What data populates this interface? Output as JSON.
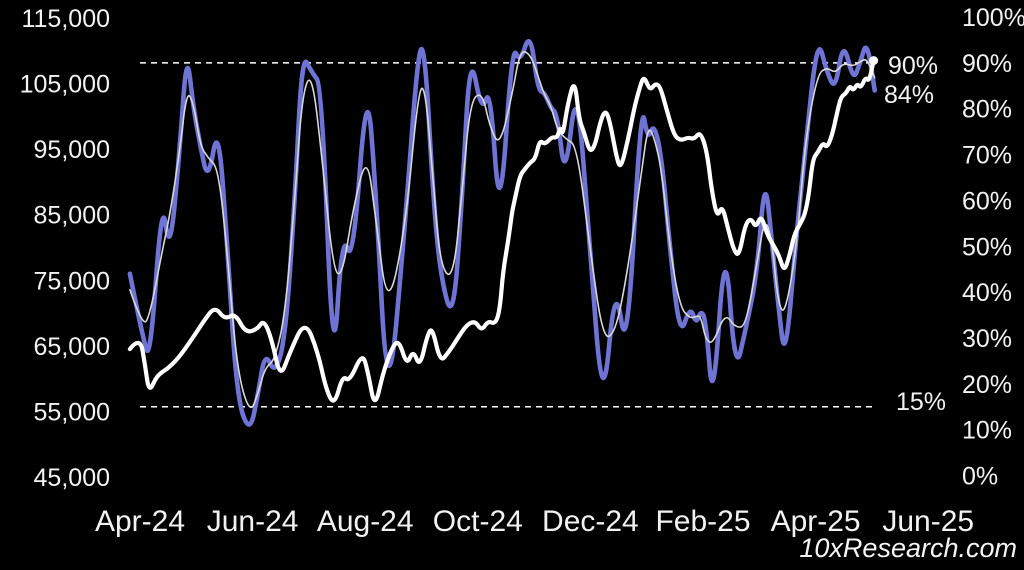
{
  "watermark": "10xResearch.com",
  "annotations": {
    "upper_threshold_label": "90%",
    "latest_value_label": "84%",
    "lower_threshold_label": "15%"
  },
  "colors": {
    "background": "#000000",
    "price_line": "#ffffff",
    "indicator_line": "#6f74d4",
    "signal_line": "#d8d8d8",
    "threshold_line": "#ffffff",
    "axis_text": "#f2f2f2"
  },
  "chart_data": {
    "type": "line",
    "grid": false,
    "legend": false,
    "x_axis": {
      "unit": "months_from_Apr-24",
      "ticks": [
        {
          "t": 0,
          "label": "Apr-24"
        },
        {
          "t": 2,
          "label": "Jun-24"
        },
        {
          "t": 4,
          "label": "Aug-24"
        },
        {
          "t": 6,
          "label": "Oct-24"
        },
        {
          "t": 8,
          "label": "Dec-24"
        },
        {
          "t": 10,
          "label": "Feb-25"
        },
        {
          "t": 12,
          "label": "Apr-25"
        },
        {
          "t": 14,
          "label": "Jun-25"
        }
      ]
    },
    "left_axis": {
      "min": 45000,
      "max": 115000,
      "ticks": [
        {
          "value": 115000,
          "label": "115,000"
        },
        {
          "value": 105000,
          "label": "105,000"
        },
        {
          "value": 95000,
          "label": "95,000"
        },
        {
          "value": 85000,
          "label": "85,000"
        },
        {
          "value": 75000,
          "label": "75,000"
        },
        {
          "value": 65000,
          "label": "65,000"
        },
        {
          "value": 55000,
          "label": "55,000"
        },
        {
          "value": 45000,
          "label": "45,000"
        }
      ]
    },
    "right_axis": {
      "min": 0,
      "max": 100,
      "ticks": [
        {
          "value": 100,
          "label": "100%"
        },
        {
          "value": 90,
          "label": "90%"
        },
        {
          "value": 80,
          "label": "80%"
        },
        {
          "value": 70,
          "label": "70%"
        },
        {
          "value": 60,
          "label": "60%"
        },
        {
          "value": 50,
          "label": "50%"
        },
        {
          "value": 40,
          "label": "40%"
        },
        {
          "value": 30,
          "label": "30%"
        },
        {
          "value": 20,
          "label": "20%"
        },
        {
          "value": 10,
          "label": "10%"
        },
        {
          "value": 0,
          "label": "0%"
        }
      ]
    },
    "thresholds": [
      {
        "axis": "right",
        "value": 90,
        "label": "90%"
      },
      {
        "axis": "right",
        "value": 15,
        "label": "15%"
      }
    ],
    "latest_indicator_value": "84%",
    "series": [
      {
        "name": "indicator",
        "axis": "right",
        "color": "#6f74d4",
        "width": 4.6,
        "points": [
          [
            -0.18,
            44
          ],
          [
            0.05,
            30
          ],
          [
            0.18,
            25
          ],
          [
            0.39,
            61
          ],
          [
            0.53,
            48
          ],
          [
            0.7,
            70
          ],
          [
            0.83,
            93
          ],
          [
            0.95,
            80
          ],
          [
            1.07,
            72
          ],
          [
            1.21,
            64
          ],
          [
            1.39,
            77
          ],
          [
            1.55,
            50
          ],
          [
            1.72,
            17
          ],
          [
            1.95,
            9
          ],
          [
            2.1,
            18
          ],
          [
            2.22,
            27
          ],
          [
            2.4,
            22
          ],
          [
            2.58,
            30
          ],
          [
            2.75,
            60
          ],
          [
            2.88,
            92
          ],
          [
            3.05,
            88
          ],
          [
            3.23,
            85
          ],
          [
            3.43,
            21
          ],
          [
            3.59,
            53
          ],
          [
            3.78,
            46
          ],
          [
            4.03,
            87
          ],
          [
            4.19,
            62
          ],
          [
            4.4,
            12.5
          ],
          [
            4.71,
            55
          ],
          [
            4.94,
            93
          ],
          [
            5.06,
            93
          ],
          [
            5.2,
            62
          ],
          [
            5.33,
            44
          ],
          [
            5.56,
            33
          ],
          [
            5.72,
            60
          ],
          [
            5.86,
            93
          ],
          [
            6.07,
            79
          ],
          [
            6.22,
            85
          ],
          [
            6.39,
            54
          ],
          [
            6.61,
            94
          ],
          [
            6.75,
            90
          ],
          [
            6.93,
            97
          ],
          [
            7.07,
            84
          ],
          [
            7.19,
            83.5
          ],
          [
            7.3,
            80
          ],
          [
            7.41,
            79
          ],
          [
            7.55,
            64
          ],
          [
            7.76,
            87
          ],
          [
            7.99,
            50
          ],
          [
            8.22,
            13
          ],
          [
            8.44,
            43
          ],
          [
            8.65,
            25
          ],
          [
            8.9,
            82
          ],
          [
            9.02,
            73
          ],
          [
            9.13,
            77
          ],
          [
            9.27,
            69
          ],
          [
            9.41,
            50
          ],
          [
            9.59,
            30
          ],
          [
            9.77,
            37
          ],
          [
            9.88,
            33
          ],
          [
            9.96,
            36
          ],
          [
            10.05,
            34
          ],
          [
            10.18,
            14
          ],
          [
            10.39,
            53
          ],
          [
            10.57,
            22
          ],
          [
            10.76,
            32
          ],
          [
            10.96,
            44
          ],
          [
            11.1,
            66
          ],
          [
            11.23,
            50
          ],
          [
            11.33,
            38
          ],
          [
            11.46,
            24
          ],
          [
            11.67,
            54
          ],
          [
            11.81,
            70
          ],
          [
            12.03,
            96
          ],
          [
            12.2,
            88
          ],
          [
            12.35,
            84
          ],
          [
            12.49,
            95
          ],
          [
            12.67,
            86
          ],
          [
            12.79,
            90
          ],
          [
            12.91,
            95
          ],
          [
            13.05,
            84
          ]
        ]
      },
      {
        "name": "indicator_signal",
        "axis": "right",
        "color": "#d8d8d8",
        "width": 1.6,
        "derived_from": "indicator",
        "smooth_window": 3
      },
      {
        "name": "btc_price",
        "axis": "left",
        "color": "#ffffff",
        "width": 4.2,
        "end_marker": true,
        "points": [
          [
            -0.18,
            64500
          ],
          [
            0.0,
            66500
          ],
          [
            0.09,
            62000
          ],
          [
            0.16,
            57800
          ],
          [
            0.3,
            60500
          ],
          [
            0.49,
            61500
          ],
          [
            0.67,
            63000
          ],
          [
            0.92,
            66000
          ],
          [
            1.15,
            69000
          ],
          [
            1.33,
            71000
          ],
          [
            1.51,
            69000
          ],
          [
            1.69,
            70000
          ],
          [
            1.87,
            67000
          ],
          [
            2.08,
            67500
          ],
          [
            2.2,
            69000
          ],
          [
            2.34,
            66000
          ],
          [
            2.49,
            60000
          ],
          [
            2.66,
            64000
          ],
          [
            2.93,
            69000
          ],
          [
            3.16,
            64000
          ],
          [
            3.3,
            58500
          ],
          [
            3.45,
            55800
          ],
          [
            3.6,
            60500
          ],
          [
            3.72,
            59500
          ],
          [
            3.95,
            64000
          ],
          [
            4.05,
            61000
          ],
          [
            4.17,
            55300
          ],
          [
            4.32,
            61000
          ],
          [
            4.49,
            65000
          ],
          [
            4.6,
            65800
          ],
          [
            4.74,
            62000
          ],
          [
            4.85,
            64400
          ],
          [
            4.97,
            61700
          ],
          [
            5.1,
            66500
          ],
          [
            5.19,
            67900
          ],
          [
            5.33,
            62500
          ],
          [
            5.48,
            64000
          ],
          [
            5.63,
            66000
          ],
          [
            5.8,
            68200
          ],
          [
            5.95,
            68800
          ],
          [
            6.07,
            67300
          ],
          [
            6.18,
            68800
          ],
          [
            6.31,
            68300
          ],
          [
            6.39,
            70500
          ],
          [
            6.45,
            76500
          ],
          [
            6.54,
            81000
          ],
          [
            6.61,
            85500
          ],
          [
            6.66,
            87500
          ],
          [
            6.75,
            91000
          ],
          [
            6.84,
            92000
          ],
          [
            6.93,
            93000
          ],
          [
            7.02,
            93500
          ],
          [
            7.1,
            96400
          ],
          [
            7.19,
            95700
          ],
          [
            7.32,
            96900
          ],
          [
            7.41,
            96700
          ],
          [
            7.47,
            98500
          ],
          [
            7.51,
            97000
          ],
          [
            7.6,
            102000
          ],
          [
            7.72,
            105800
          ],
          [
            7.8,
            99500
          ],
          [
            7.89,
            97500
          ],
          [
            7.99,
            94500
          ],
          [
            8.08,
            95500
          ],
          [
            8.17,
            99000
          ],
          [
            8.26,
            101000
          ],
          [
            8.34,
            99500
          ],
          [
            8.47,
            93500
          ],
          [
            8.54,
            92000
          ],
          [
            8.67,
            96500
          ],
          [
            8.77,
            101000
          ],
          [
            8.88,
            104500
          ],
          [
            8.95,
            106200
          ],
          [
            9.06,
            103900
          ],
          [
            9.15,
            105000
          ],
          [
            9.24,
            104600
          ],
          [
            9.36,
            100800
          ],
          [
            9.49,
            97000
          ],
          [
            9.61,
            96300
          ],
          [
            9.73,
            96800
          ],
          [
            9.84,
            96500
          ],
          [
            9.95,
            97700
          ],
          [
            10.07,
            94700
          ],
          [
            10.15,
            89000
          ],
          [
            10.25,
            84500
          ],
          [
            10.34,
            86500
          ],
          [
            10.44,
            83000
          ],
          [
            10.55,
            79500
          ],
          [
            10.64,
            78700
          ],
          [
            10.75,
            83500
          ],
          [
            10.85,
            84500
          ],
          [
            10.94,
            83000
          ],
          [
            11.03,
            85000
          ],
          [
            11.14,
            82000
          ],
          [
            11.24,
            80500
          ],
          [
            11.35,
            78800
          ],
          [
            11.44,
            76300
          ],
          [
            11.53,
            78500
          ],
          [
            11.62,
            82000
          ],
          [
            11.72,
            83500
          ],
          [
            11.81,
            85000
          ],
          [
            11.88,
            88000
          ],
          [
            11.95,
            93500
          ],
          [
            12.04,
            94500
          ],
          [
            12.13,
            96000
          ],
          [
            12.2,
            95200
          ],
          [
            12.29,
            97000
          ],
          [
            12.38,
            100500
          ],
          [
            12.45,
            103000
          ],
          [
            12.54,
            103500
          ],
          [
            12.61,
            104700
          ],
          [
            12.67,
            103900
          ],
          [
            12.74,
            105000
          ],
          [
            12.8,
            104300
          ],
          [
            12.89,
            106000
          ],
          [
            12.95,
            105300
          ],
          [
            13.03,
            108500
          ]
        ]
      }
    ]
  }
}
